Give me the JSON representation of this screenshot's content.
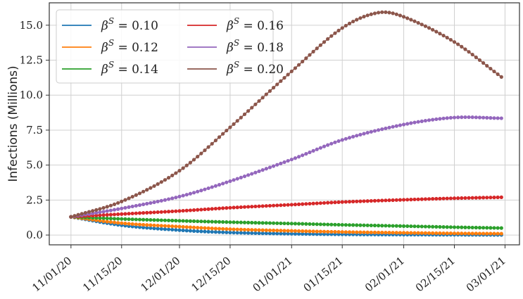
{
  "chart_data": {
    "type": "line",
    "title": "",
    "xlabel": "",
    "ylabel": "Infections (Millions)",
    "x_start": "11/01/20",
    "x_end": "02/28/21",
    "xlim": [
      "10/26/20",
      "03/05/21"
    ],
    "xticks": [
      "11/01/20",
      "11/15/20",
      "12/01/20",
      "12/15/20",
      "01/01/21",
      "01/15/21",
      "02/01/21",
      "02/15/21",
      "03/01/21"
    ],
    "yticks": [
      0.0,
      2.5,
      5.0,
      7.5,
      10.0,
      12.5,
      15.0
    ],
    "ytick_labels": [
      "0.0",
      "2.5",
      "5.0",
      "7.5",
      "10.0",
      "12.5",
      "15.0"
    ],
    "ylim": [
      -0.7,
      16.6
    ],
    "grid": true,
    "legend_position": "top-left",
    "legend_columns": 2,
    "series": [
      {
        "name": "β^S = 0.10",
        "legend_symbol": "β",
        "legend_sup": "S",
        "legend_value": "= 0.10",
        "color": "#1f77b4",
        "points": [
          [
            "11/01/20",
            1.3
          ],
          [
            "11/15/20",
            0.7
          ],
          [
            "12/01/20",
            0.35
          ],
          [
            "12/15/20",
            0.18
          ],
          [
            "01/01/21",
            0.09
          ],
          [
            "01/15/21",
            0.05
          ],
          [
            "02/01/21",
            0.03
          ],
          [
            "02/15/21",
            0.02
          ],
          [
            "02/28/21",
            0.01
          ]
        ]
      },
      {
        "name": "β^S = 0.12",
        "legend_symbol": "β",
        "legend_sup": "S",
        "legend_value": "= 0.12",
        "color": "#ff7f0e",
        "points": [
          [
            "11/01/20",
            1.3
          ],
          [
            "11/15/20",
            0.85
          ],
          [
            "12/01/20",
            0.6
          ],
          [
            "12/15/20",
            0.42
          ],
          [
            "01/01/21",
            0.3
          ],
          [
            "01/15/21",
            0.22
          ],
          [
            "02/01/21",
            0.16
          ],
          [
            "02/15/21",
            0.12
          ],
          [
            "02/28/21",
            0.1
          ]
        ]
      },
      {
        "name": "β^S = 0.14",
        "legend_symbol": "β",
        "legend_sup": "S",
        "legend_value": "= 0.14",
        "color": "#2ca02c",
        "points": [
          [
            "11/01/20",
            1.3
          ],
          [
            "11/15/20",
            1.15
          ],
          [
            "12/01/20",
            1.02
          ],
          [
            "12/15/20",
            0.92
          ],
          [
            "01/01/21",
            0.82
          ],
          [
            "01/15/21",
            0.73
          ],
          [
            "02/01/21",
            0.64
          ],
          [
            "02/15/21",
            0.56
          ],
          [
            "02/28/21",
            0.5
          ]
        ]
      },
      {
        "name": "β^S = 0.16",
        "legend_symbol": "β",
        "legend_sup": "S",
        "legend_value": "= 0.16",
        "color": "#d62728",
        "points": [
          [
            "11/01/20",
            1.3
          ],
          [
            "11/15/20",
            1.5
          ],
          [
            "12/01/20",
            1.72
          ],
          [
            "12/15/20",
            1.95
          ],
          [
            "01/01/21",
            2.17
          ],
          [
            "01/15/21",
            2.36
          ],
          [
            "02/01/21",
            2.52
          ],
          [
            "02/15/21",
            2.63
          ],
          [
            "02/28/21",
            2.7
          ]
        ]
      },
      {
        "name": "β^S = 0.18",
        "legend_symbol": "β",
        "legend_sup": "S",
        "legend_value": "= 0.18",
        "color": "#9467bd",
        "points": [
          [
            "11/01/20",
            1.3
          ],
          [
            "11/15/20",
            1.9
          ],
          [
            "12/01/20",
            2.75
          ],
          [
            "12/15/20",
            3.85
          ],
          [
            "01/01/21",
            5.4
          ],
          [
            "01/15/21",
            6.8
          ],
          [
            "02/01/21",
            7.9
          ],
          [
            "02/15/21",
            8.4
          ],
          [
            "02/28/21",
            8.35
          ]
        ]
      },
      {
        "name": "β^S = 0.20",
        "legend_symbol": "β",
        "legend_sup": "S",
        "legend_value": "= 0.20",
        "color": "#8c564b",
        "points": [
          [
            "11/01/20",
            1.3
          ],
          [
            "11/15/20",
            2.4
          ],
          [
            "12/01/20",
            4.6
          ],
          [
            "12/15/20",
            7.7
          ],
          [
            "01/01/21",
            11.7
          ],
          [
            "01/15/21",
            14.8
          ],
          [
            "01/25/21",
            15.9
          ],
          [
            "02/01/21",
            15.6
          ],
          [
            "02/15/21",
            13.8
          ],
          [
            "02/28/21",
            11.3
          ]
        ]
      }
    ]
  }
}
